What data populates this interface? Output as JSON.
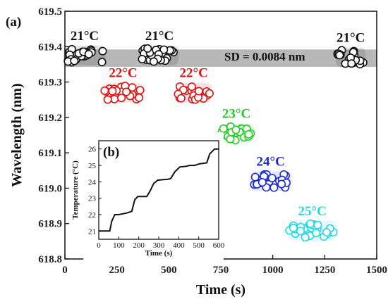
{
  "panel_a": "(a)",
  "panel_b": "(b)",
  "sd_label": "SD = 0.0084 nm",
  "chart_data": [
    {
      "type": "scatter",
      "xlabel": "Time (s)",
      "ylabel": "Wavelength (nm)",
      "xlim": [
        0,
        1500
      ],
      "ylim": [
        618.8,
        619.5
      ],
      "xticks": [
        0,
        250,
        500,
        750,
        1000,
        1250,
        1500
      ],
      "yticks": [
        618.8,
        618.9,
        619.0,
        619.1,
        619.2,
        619.3,
        619.4,
        619.5
      ],
      "shaded_band": {
        "from": 619.343,
        "to": 619.392,
        "color": "#b8b8b8"
      },
      "groups": [
        {
          "label": "21°C",
          "x_range": [
            0,
            190
          ],
          "y": 619.375,
          "color": "#111111"
        },
        {
          "label": "22°C",
          "x_range": [
            190,
            370
          ],
          "y": 619.27,
          "color": "#dd1111"
        },
        {
          "label": "21°C",
          "x_range": [
            370,
            540
          ],
          "y": 619.375,
          "color": "#111111"
        },
        {
          "label": "22°C",
          "x_range": [
            540,
            700
          ],
          "y": 619.27,
          "color": "#dd1111"
        },
        {
          "label": "23°C",
          "x_range": [
            750,
            900
          ],
          "y": 619.155,
          "color": "#22cc22"
        },
        {
          "label": "24°C",
          "x_range": [
            900,
            1080
          ],
          "y": 619.02,
          "color": "#1a2ad0"
        },
        {
          "label": "25°C",
          "x_range": [
            1080,
            1300
          ],
          "y": 618.88,
          "color": "#22d8e6"
        },
        {
          "label": "21°C",
          "x_range": [
            1310,
            1440
          ],
          "y": 619.37,
          "color": "#111111"
        }
      ],
      "legend": "none",
      "grid": false
    },
    {
      "type": "line",
      "xlabel": "Time (s)",
      "ylabel": "Temperature (°C)",
      "xlim": [
        0,
        600
      ],
      "ylim": [
        20.5,
        26.5
      ],
      "xticks": [
        0,
        100,
        200,
        300,
        400,
        500,
        600
      ],
      "yticks": [
        21,
        22,
        23,
        24,
        25,
        26
      ],
      "x": [
        0,
        55,
        65,
        80,
        100,
        140,
        165,
        180,
        195,
        240,
        255,
        275,
        295,
        345,
        360,
        380,
        405,
        440,
        455,
        480,
        505,
        540,
        555,
        580,
        600
      ],
      "y": [
        21.0,
        21.0,
        21.6,
        22.0,
        22.0,
        22.1,
        22.2,
        22.9,
        23.1,
        23.1,
        23.4,
        23.9,
        24.1,
        24.15,
        24.2,
        24.6,
        24.9,
        24.95,
        25.0,
        25.0,
        25.1,
        25.15,
        25.7,
        26.0,
        26.0
      ],
      "color": "#111111"
    }
  ]
}
